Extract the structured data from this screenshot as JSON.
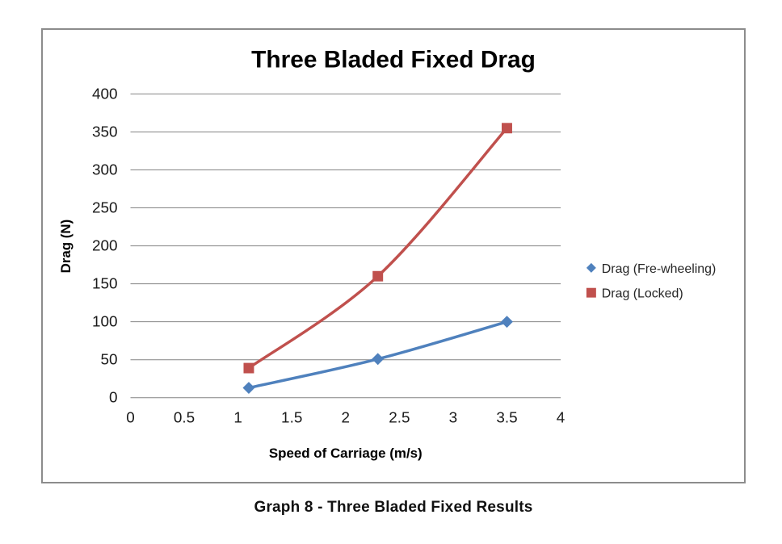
{
  "page": {
    "caption": "Graph 8 - Three Bladed Fixed Results"
  },
  "chart_data": {
    "type": "line",
    "title": "Three Bladed Fixed Drag",
    "xlabel": "Speed of Carriage (m/s)",
    "ylabel": "Drag (N)",
    "xlim": [
      0,
      4
    ],
    "ylim": [
      0,
      400
    ],
    "x_ticks": [
      "0",
      "0.5",
      "1",
      "1.5",
      "2",
      "2.5",
      "3",
      "3.5",
      "4"
    ],
    "y_ticks": [
      "0",
      "50",
      "100",
      "150",
      "200",
      "250",
      "300",
      "350",
      "400"
    ],
    "grid": "horizontal-only",
    "legend_position": "right",
    "colors": {
      "grid": "#848484",
      "frame_border": "#8c8c8c",
      "text": "#1a1a1a",
      "legend_text": "#262626",
      "series_freewheeling": "#4f81bd",
      "series_locked": "#c0504d"
    },
    "series": [
      {
        "name": "Drag (Fre-wheeling)",
        "color": "#4f81bd",
        "marker": "diamond",
        "smooth": true,
        "points": [
          [
            1.1,
            13
          ],
          [
            2.3,
            51
          ],
          [
            3.5,
            100
          ]
        ]
      },
      {
        "name": "Drag (Locked)",
        "color": "#c0504d",
        "marker": "square",
        "smooth": true,
        "points": [
          [
            1.1,
            39
          ],
          [
            2.3,
            160
          ],
          [
            3.5,
            355
          ]
        ]
      }
    ]
  }
}
